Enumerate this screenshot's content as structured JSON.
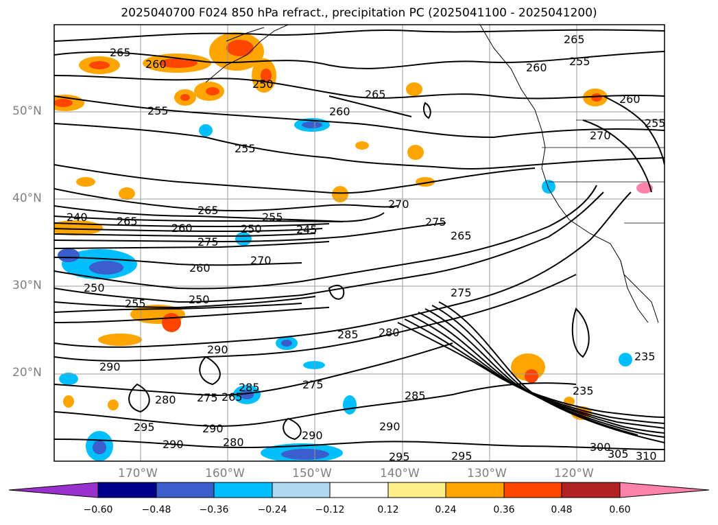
{
  "title": "2025040700 F024 850 hPa refract., precipitation PC (2025041100 - 2025041200)",
  "lat_labels": [
    "50°N",
    "40°N",
    "30°N",
    "20°N"
  ],
  "lon_labels": [
    "170°W",
    "160°W",
    "150°W",
    "140°W",
    "130°W",
    "120°W"
  ],
  "colorbar": {
    "ticks": [
      "−0.60",
      "−0.48",
      "−0.36",
      "−0.24",
      "−0.12",
      "0.12",
      "0.24",
      "0.36",
      "0.48",
      "0.60"
    ],
    "colors": [
      "#9932cc",
      "#00008b",
      "#3a5fcd",
      "#00bfff",
      "#add8f0",
      "#ffffff",
      "#fff08a",
      "#ffa500",
      "#ff4500",
      "#b22222",
      "#ff82ab"
    ]
  },
  "contour_labels": [
    "265",
    "260",
    "255",
    "250",
    "265",
    "260",
    "255",
    "265",
    "260",
    "255",
    "265",
    "270",
    "275",
    "265",
    "240",
    "245",
    "250",
    "255",
    "260",
    "265",
    "275",
    "270",
    "260",
    "250",
    "255",
    "250",
    "285",
    "290",
    "275",
    "285",
    "280",
    "290",
    "295",
    "290",
    "280",
    "290",
    "275",
    "285",
    "290",
    "295",
    "295",
    "300",
    "305",
    "310",
    "235",
    "235",
    "255",
    "260",
    "265",
    "270",
    "275",
    "280",
    "290"
  ]
}
